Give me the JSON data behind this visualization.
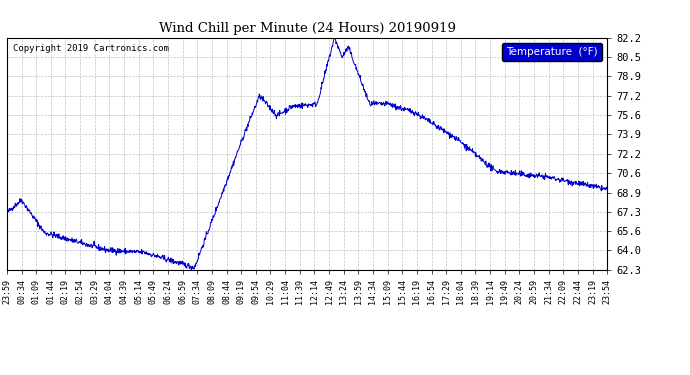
{
  "title": "Wind Chill per Minute (24 Hours) 20190919",
  "copyright": "Copyright 2019 Cartronics.com",
  "legend_label": "Temperature  (°F)",
  "line_color": "#0000cc",
  "background_color": "#ffffff",
  "grid_color": "#bbbbbb",
  "ylim": [
    62.3,
    82.2
  ],
  "yticks": [
    62.3,
    64.0,
    65.6,
    67.3,
    68.9,
    70.6,
    72.2,
    73.9,
    75.6,
    77.2,
    78.9,
    80.5,
    82.2
  ],
  "xtick_labels": [
    "23:59",
    "00:34",
    "01:09",
    "01:44",
    "02:19",
    "02:54",
    "03:29",
    "04:04",
    "04:39",
    "05:14",
    "05:49",
    "06:24",
    "06:59",
    "07:34",
    "08:09",
    "08:44",
    "09:19",
    "09:54",
    "10:29",
    "11:04",
    "11:39",
    "12:14",
    "12:49",
    "13:24",
    "13:59",
    "14:34",
    "15:09",
    "15:44",
    "16:19",
    "16:54",
    "17:29",
    "18:04",
    "18:39",
    "19:14",
    "19:49",
    "20:24",
    "20:59",
    "21:34",
    "22:09",
    "22:44",
    "23:19",
    "23:54"
  ],
  "num_points": 1440,
  "figwidth": 6.9,
  "figheight": 3.75,
  "dpi": 100
}
